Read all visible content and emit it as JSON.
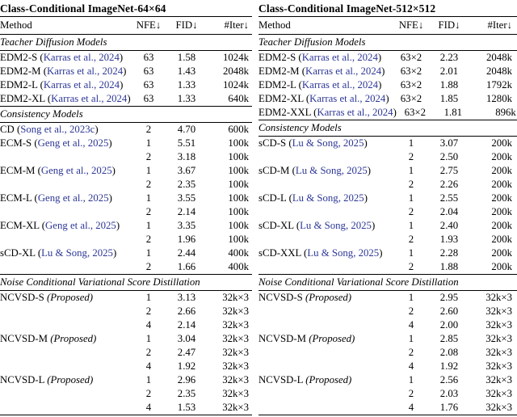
{
  "page": {
    "background": "#ffffff",
    "text_color": "#000000",
    "citation_color": "#2d3796"
  },
  "tables": [
    {
      "title": "Class-Conditional ImageNet-64×64",
      "columns": {
        "method": "Method",
        "nfe": "NFE↓",
        "fid": "FID↓",
        "iter": "#Iter↓"
      },
      "sections": [
        {
          "label": "Teacher Diffusion Models",
          "rows": [
            {
              "method": "EDM2-S",
              "cite": "Karras et al., 2024",
              "nfe": "63",
              "fid": "1.58",
              "iter": "1024k"
            },
            {
              "method": "EDM2-M",
              "cite": "Karras et al., 2024",
              "nfe": "63",
              "fid": "1.43",
              "iter": "2048k"
            },
            {
              "method": "EDM2-L",
              "cite": "Karras et al., 2024",
              "nfe": "63",
              "fid": "1.33",
              "iter": "1024k"
            },
            {
              "method": "EDM2-XL",
              "cite": "Karras et al., 2024",
              "nfe": "63",
              "fid": "1.33",
              "iter": "640k"
            }
          ]
        },
        {
          "label": "Consistency Models",
          "rows": [
            {
              "method": "CD",
              "cite": "Song et al., 2023c",
              "nfe": "2",
              "fid": "4.70",
              "iter": "600k"
            },
            {
              "method": "ECM-S",
              "cite": "Geng et al., 2025",
              "nfe": "1",
              "fid": "5.51",
              "iter": "100k"
            },
            {
              "method": "",
              "nfe": "2",
              "fid": "3.18",
              "iter": "100k"
            },
            {
              "method": "ECM-M",
              "cite": "Geng et al., 2025",
              "nfe": "1",
              "fid": "3.67",
              "iter": "100k"
            },
            {
              "method": "",
              "nfe": "2",
              "fid": "2.35",
              "iter": "100k"
            },
            {
              "method": "ECM-L",
              "cite": "Geng et al., 2025",
              "nfe": "1",
              "fid": "3.55",
              "iter": "100k"
            },
            {
              "method": "",
              "nfe": "2",
              "fid": "2.14",
              "iter": "100k"
            },
            {
              "method": "ECM-XL",
              "cite": "Geng et al., 2025",
              "nfe": "1",
              "fid": "3.35",
              "iter": "100k"
            },
            {
              "method": "",
              "nfe": "2",
              "fid": "1.96",
              "iter": "100k"
            },
            {
              "method": "sCD-XL",
              "cite": "Lu & Song, 2025",
              "nfe": "1",
              "fid": "2.44",
              "iter": "400k"
            },
            {
              "method": "",
              "nfe": "2",
              "fid": "1.66",
              "iter": "400k"
            }
          ]
        },
        {
          "label": "Noise Conditional Variational Score Distillation",
          "rows": [
            {
              "method": "NCVSD-S",
              "note": "Proposed",
              "nfe": "1",
              "fid": "3.13",
              "iter": "32k×3"
            },
            {
              "method": "",
              "nfe": "2",
              "fid": "2.66",
              "iter": "32k×3"
            },
            {
              "method": "",
              "nfe": "4",
              "fid": "2.14",
              "iter": "32k×3"
            },
            {
              "method": "NCVSD-M",
              "note": "Proposed",
              "nfe": "1",
              "fid": "3.04",
              "iter": "32k×3"
            },
            {
              "method": "",
              "nfe": "2",
              "fid": "2.47",
              "iter": "32k×3"
            },
            {
              "method": "",
              "nfe": "4",
              "fid": "1.92",
              "iter": "32k×3"
            },
            {
              "method": "NCVSD-L",
              "note": "Proposed",
              "nfe": "1",
              "fid": "2.96",
              "iter": "32k×3"
            },
            {
              "method": "",
              "nfe": "2",
              "fid": "2.35",
              "iter": "32k×3"
            },
            {
              "method": "",
              "nfe": "4",
              "fid": "1.53",
              "iter": "32k×3"
            }
          ]
        }
      ]
    },
    {
      "title": "Class-Conditional ImageNet-512×512",
      "columns": {
        "method": "Method",
        "nfe": "NFE↓",
        "fid": "FID↓",
        "iter": "#Iter↓"
      },
      "sections": [
        {
          "label": "Teacher Diffusion Models",
          "rows": [
            {
              "method": "EDM2-S",
              "cite": "Karras et al., 2024",
              "nfe": "63×2",
              "fid": "2.23",
              "iter": "2048k"
            },
            {
              "method": "EDM2-M",
              "cite": "Karras et al., 2024",
              "nfe": "63×2",
              "fid": "2.01",
              "iter": "2048k"
            },
            {
              "method": "EDM2-L",
              "cite": "Karras et al., 2024",
              "nfe": "63×2",
              "fid": "1.88",
              "iter": "1792k"
            },
            {
              "method": "EDM2-XL",
              "cite": "Karras et al., 2024",
              "nfe": "63×2",
              "fid": "1.85",
              "iter": "1280k"
            },
            {
              "method": "EDM2-XXL",
              "cite": "Karras et al., 2024",
              "nfe": "63×2",
              "fid": "1.81",
              "iter": "896k"
            }
          ]
        },
        {
          "label": "Consistency Models",
          "rows": [
            {
              "method": "sCD-S",
              "cite": "Lu & Song, 2025",
              "nfe": "1",
              "fid": "3.07",
              "iter": "200k"
            },
            {
              "method": "",
              "nfe": "2",
              "fid": "2.50",
              "iter": "200k"
            },
            {
              "method": "sCD-M",
              "cite": "Lu & Song, 2025",
              "nfe": "1",
              "fid": "2.75",
              "iter": "200k"
            },
            {
              "method": "",
              "nfe": "2",
              "fid": "2.26",
              "iter": "200k"
            },
            {
              "method": "sCD-L",
              "cite": "Lu & Song, 2025",
              "nfe": "1",
              "fid": "2.55",
              "iter": "200k"
            },
            {
              "method": "",
              "nfe": "2",
              "fid": "2.04",
              "iter": "200k"
            },
            {
              "method": "sCD-XL",
              "cite": "Lu & Song, 2025",
              "nfe": "1",
              "fid": "2.40",
              "iter": "200k"
            },
            {
              "method": "",
              "nfe": "2",
              "fid": "1.93",
              "iter": "200k"
            },
            {
              "method": "sCD-XXL",
              "cite": "Lu & Song, 2025",
              "nfe": "1",
              "fid": "2.28",
              "iter": "200k"
            },
            {
              "method": "",
              "nfe": "2",
              "fid": "1.88",
              "iter": "200k"
            }
          ]
        },
        {
          "label": "Noise Conditional Variational Score Distillation",
          "rows": [
            {
              "method": "NCVSD-S",
              "note": "Proposed",
              "nfe": "1",
              "fid": "2.95",
              "iter": "32k×3"
            },
            {
              "method": "",
              "nfe": "2",
              "fid": "2.60",
              "iter": "32k×3"
            },
            {
              "method": "",
              "nfe": "4",
              "fid": "2.00",
              "iter": "32k×3"
            },
            {
              "method": "NCVSD-M",
              "note": "Proposed",
              "nfe": "1",
              "fid": "2.85",
              "iter": "32k×3"
            },
            {
              "method": "",
              "nfe": "2",
              "fid": "2.08",
              "iter": "32k×3"
            },
            {
              "method": "",
              "nfe": "4",
              "fid": "1.92",
              "iter": "32k×3"
            },
            {
              "method": "NCVSD-L",
              "note": "Proposed",
              "nfe": "1",
              "fid": "2.56",
              "iter": "32k×3"
            },
            {
              "method": "",
              "nfe": "2",
              "fid": "2.03",
              "iter": "32k×3"
            },
            {
              "method": "",
              "nfe": "4",
              "fid": "1.76",
              "iter": "32k×3"
            }
          ]
        }
      ]
    }
  ]
}
